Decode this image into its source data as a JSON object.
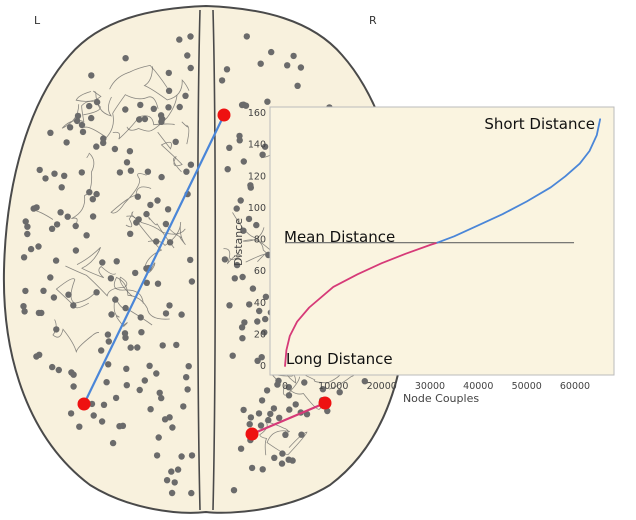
{
  "labels": {
    "left": "L",
    "right": "R"
  },
  "colors": {
    "brain_fill": "#f8f1dd",
    "brain_outline": "#4a4a4a",
    "sulci": "#5a5a5a",
    "node": "#6b6b6b",
    "hub_node": "#ee1111",
    "short_edge": "#4a86d8",
    "long_edge": "#d63a78",
    "panel_bg": "#faf4e0",
    "mean_line": "#666666"
  },
  "chart_data": {
    "type": "line",
    "xlabel": "Node Couples",
    "ylabel": "Distance",
    "xlim": [
      0,
      66000
    ],
    "ylim": [
      0,
      160
    ],
    "xticks": [
      "0",
      "10000",
      "20000",
      "30000",
      "40000",
      "50000",
      "60000"
    ],
    "yticks": [
      "0",
      "20",
      "40",
      "60",
      "80",
      "100",
      "120",
      "140",
      "160"
    ],
    "mean_distance": 78,
    "mean_x_range": [
      0,
      59800
    ],
    "series": [
      {
        "name": "long",
        "color": "#d63a78",
        "x": [
          0,
          300,
          1000,
          2500,
          5000,
          10000,
          15000,
          20000,
          25000,
          30000,
          31500
        ],
        "y": [
          0,
          10,
          19,
          28,
          37,
          50,
          58,
          65,
          71,
          76.5,
          78
        ]
      },
      {
        "name": "short",
        "color": "#4a86d8",
        "x": [
          31500,
          35000,
          40000,
          45000,
          50000,
          55000,
          58000,
          61000,
          63000,
          64500,
          65200
        ],
        "y": [
          78,
          82,
          89,
          96,
          104,
          113,
          120,
          128,
          136,
          146,
          156
        ]
      }
    ],
    "annotations": {
      "short": "Short Distance",
      "mean": "Mean Distance",
      "long": "Long Distance"
    }
  }
}
